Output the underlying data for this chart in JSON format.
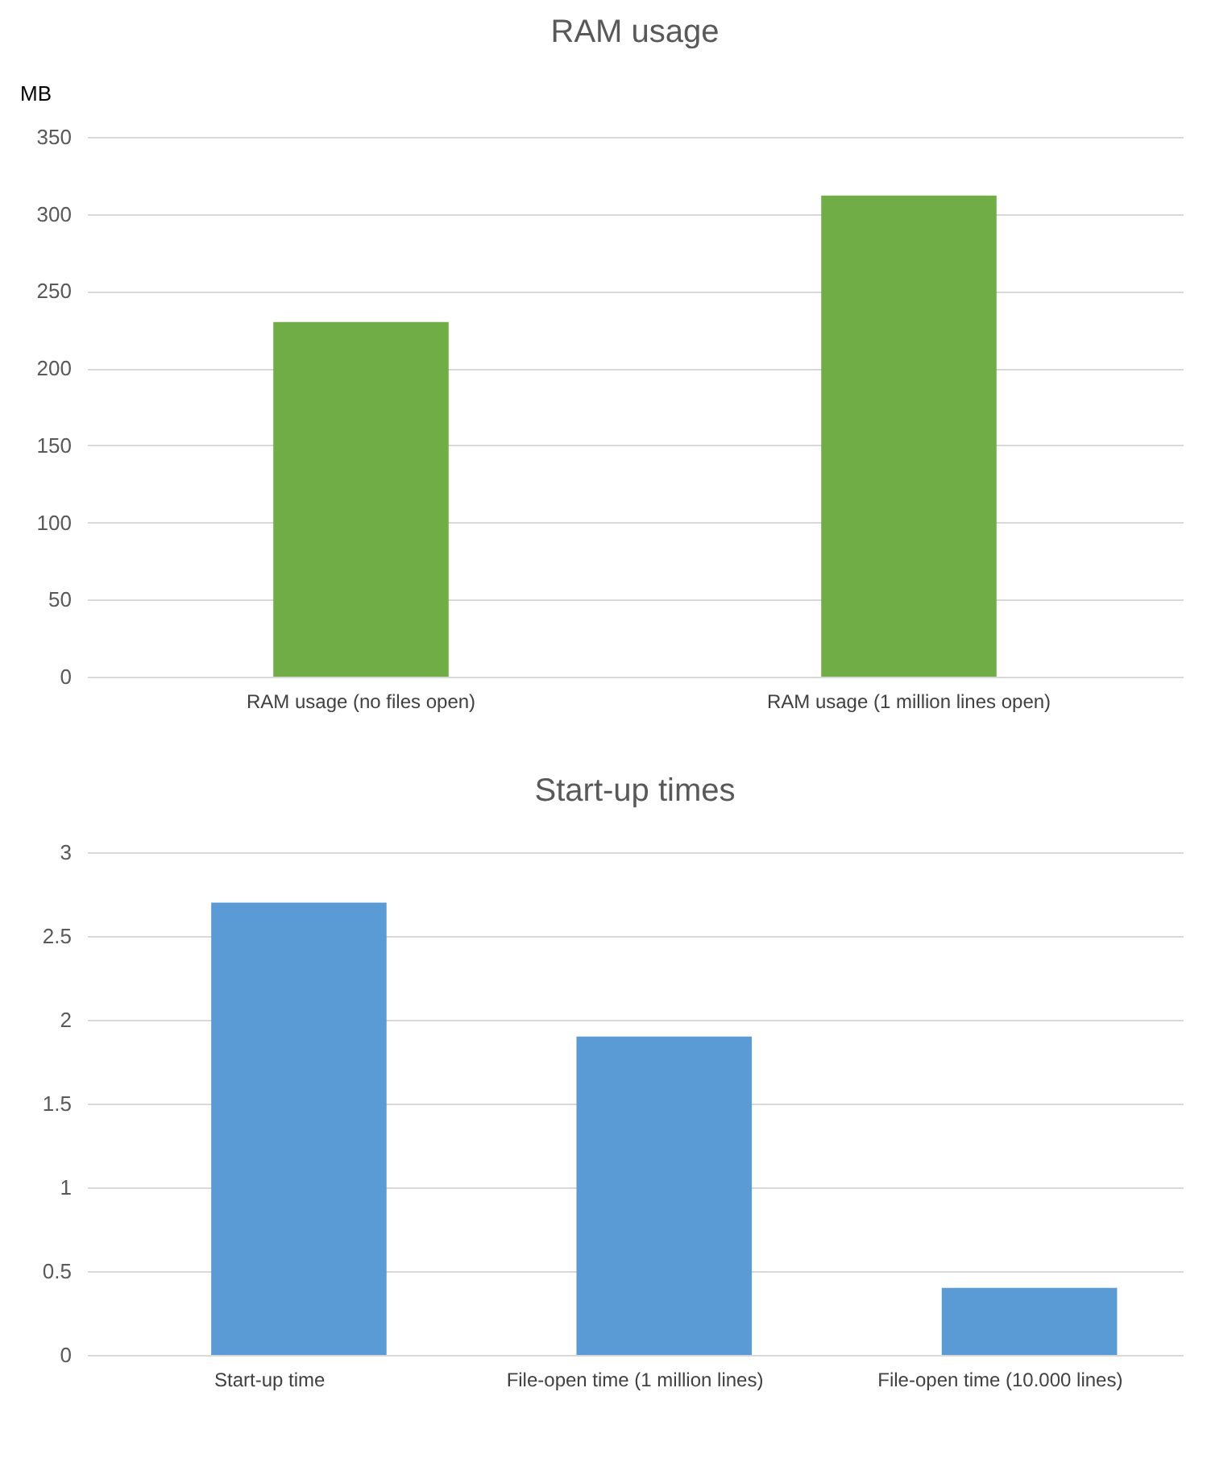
{
  "chart_data": [
    {
      "type": "bar",
      "title": "RAM usage",
      "ylabel": "MB",
      "categories": [
        "RAM usage (no files open)",
        "RAM usage (1 million lines open)"
      ],
      "series": [
        {
          "color": "#70ad47",
          "values": [
            230,
            312
          ]
        }
      ],
      "ylim": [
        0,
        350
      ],
      "yticks": [
        0,
        50,
        100,
        150,
        200,
        250,
        300,
        350
      ],
      "grid": "y",
      "legend": false
    },
    {
      "type": "bar",
      "title": "Start-up times",
      "categories": [
        "Start-up time",
        "File-open time (1 million lines)",
        "File-open time (10.000 lines)"
      ],
      "series": [
        {
          "color": "#5b9bd5",
          "values": [
            2.7,
            1.9,
            0.4
          ]
        }
      ],
      "ylim": [
        0,
        3
      ],
      "yticks": [
        0,
        0.5,
        1,
        1.5,
        2,
        2.5,
        3
      ],
      "grid": "y",
      "legend": false
    }
  ]
}
